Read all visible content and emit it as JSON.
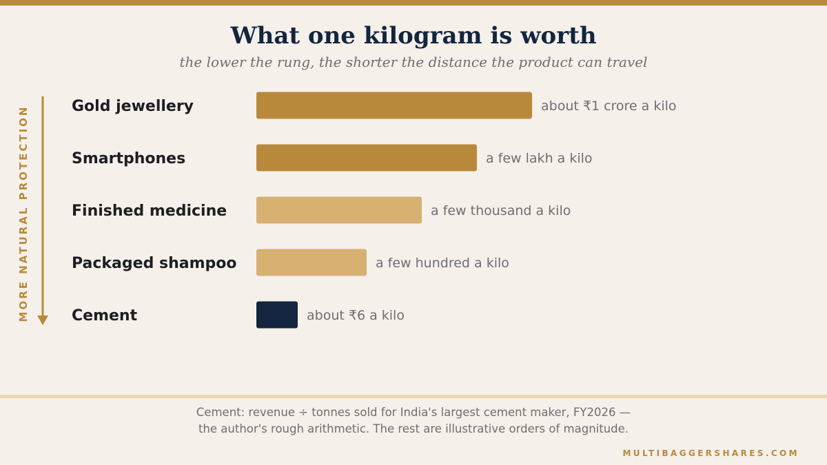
{
  "chart_data": {
    "type": "bar",
    "orientation": "horizontal",
    "title": "What one kilogram is worth",
    "subtitle": "the lower the rung, the shorter the distance the product can travel",
    "axis_label": "MORE NATURAL PROTECTION",
    "categories": [
      "Gold jewellery",
      "Smartphones",
      "Finished medicine",
      "Packaged shampoo",
      "Cement"
    ],
    "values": [
      5,
      4,
      3,
      2,
      0.75
    ],
    "value_labels": [
      "about ₹1 crore a kilo",
      "a few lakh a kilo",
      "a few thousand a kilo",
      "a few hundred a kilo",
      "about ₹6 a kilo"
    ],
    "bar_colors": [
      "#b9893b",
      "#b9893b",
      "#d7b072",
      "#d7b072",
      "#13253f"
    ],
    "grid": false,
    "legend": "none"
  },
  "footnote": {
    "line1": "Cement: revenue ÷ tonnes sold for India's largest cement maker, FY2026 —",
    "line2": "the author's rough arithmetic. The rest are illustrative orders of magnitude."
  },
  "brand": "MULTIBAGGERSHARES.COM",
  "colors": {
    "background": "#f5f0ea",
    "accent": "#b9893b",
    "accent_light": "#d7b072",
    "navy": "#13253f",
    "muted_text": "#6d6d72"
  }
}
